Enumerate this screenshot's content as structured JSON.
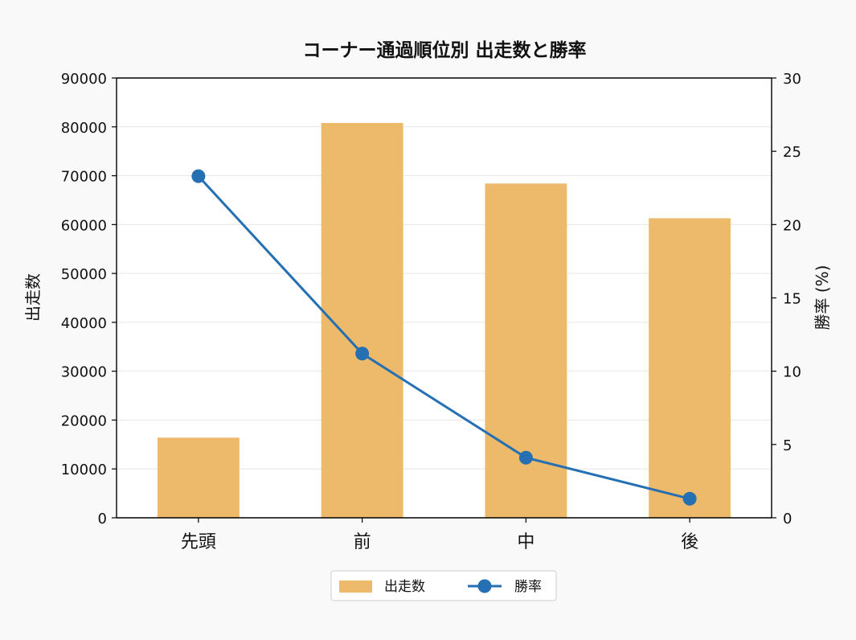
{
  "chart_data": {
    "type": "bar",
    "title": "コーナー通過順位別 出走数と勝率",
    "categories": [
      "先頭",
      "前",
      "中",
      "後"
    ],
    "series": [
      {
        "name": "出走数",
        "type": "bar",
        "axis": "left",
        "color": "#EDB96A",
        "values": [
          16400,
          80800,
          68400,
          61300
        ]
      },
      {
        "name": "勝率",
        "type": "line",
        "axis": "right",
        "color": "#2470B3",
        "values": [
          23.3,
          11.2,
          4.1,
          1.3
        ]
      }
    ],
    "ylabel": "出走数",
    "ylabel_right": "勝率 (%)",
    "ylim": [
      0,
      90000
    ],
    "yticks": [
      "0",
      "10000",
      "20000",
      "30000",
      "40000",
      "50000",
      "60000",
      "70000",
      "80000",
      "90000"
    ],
    "ylim_right": [
      0,
      30
    ],
    "yticks_right": [
      "0",
      "5",
      "10",
      "15",
      "20",
      "25",
      "30"
    ],
    "grid": "horizontal",
    "legend_position": "bottom-center"
  }
}
